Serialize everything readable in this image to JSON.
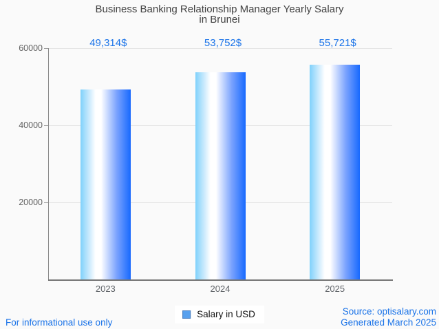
{
  "title": {
    "line1": "Business Banking Relationship Manager Yearly Salary",
    "line2": "in Brunei"
  },
  "chart_data": {
    "type": "bar",
    "title": "Business Banking Relationship Manager Yearly Salary in Brunei",
    "categories": [
      "2023",
      "2024",
      "2025"
    ],
    "values": [
      49314,
      53752,
      55721
    ],
    "value_labels": [
      "49,314$",
      "53,752$",
      "55,721$"
    ],
    "xlabel": "",
    "ylabel": "",
    "ylim": [
      0,
      60000
    ],
    "yticks": [
      20000,
      40000,
      60000
    ],
    "ytick_labels": [
      "20000",
      "40000",
      "60000"
    ],
    "grid": true,
    "legend_position": "bottom",
    "series_name": "Salary in USD"
  },
  "legend": {
    "label": "Salary in USD"
  },
  "footer": {
    "left": "For informational use only",
    "source": "Source: optisalary.com",
    "generated": "Generated March 2025"
  },
  "colors": {
    "accent_blue": "#1a73e8",
    "bar_gradient_left": "#7fd1fb",
    "bar_gradient_mid": "#ffffff",
    "bar_gradient_right": "#1769fe",
    "legend_marker_fill": "#57a0ee",
    "legend_marker_border": "#4a7fc1",
    "gridline": "#e4e4e4",
    "axis": "#757575",
    "title_text": "#424242",
    "tick_text": "#5f6368",
    "background": "#fafafa"
  }
}
